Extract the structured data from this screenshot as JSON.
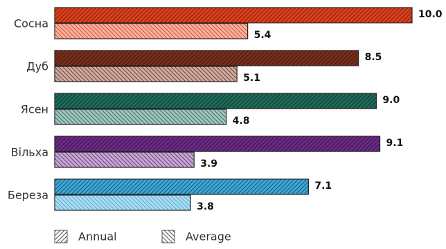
{
  "chart_data": {
    "type": "bar",
    "orientation": "horizontal",
    "categories": [
      "Сосна",
      "Дуб",
      "Ясен",
      "Вільха",
      "Береза"
    ],
    "category_colors": [
      "#e0401c",
      "#7a2f1a",
      "#1f6b5a",
      "#6a2a86",
      "#3aa8d8"
    ],
    "series": [
      {
        "name": "Annual",
        "pattern": "forward-diagonal",
        "values": [
          10.0,
          8.5,
          9.0,
          9.1,
          7.1
        ]
      },
      {
        "name": "Average",
        "pattern": "back-diagonal",
        "values": [
          5.4,
          5.1,
          4.8,
          3.9,
          3.8
        ]
      }
    ],
    "xlim": [
      0,
      10.0
    ],
    "grid": false,
    "legend_position": "bottom-left"
  }
}
